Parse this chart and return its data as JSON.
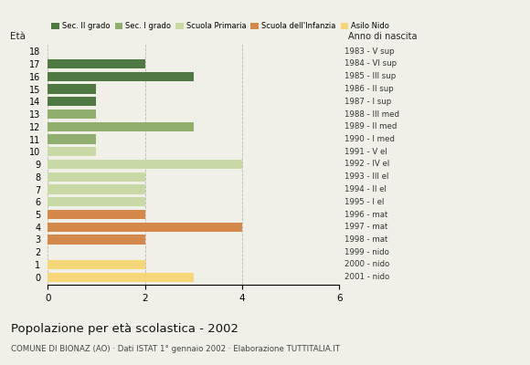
{
  "ages": [
    0,
    1,
    2,
    3,
    4,
    5,
    6,
    7,
    8,
    9,
    10,
    11,
    12,
    13,
    14,
    15,
    16,
    17,
    18
  ],
  "values": [
    3,
    2,
    0,
    2,
    4,
    2,
    2,
    2,
    2,
    4,
    1,
    1,
    3,
    1,
    1,
    1,
    3,
    2,
    0
  ],
  "colors": [
    "#f5d679",
    "#f5d679",
    "#f5d679",
    "#d4884a",
    "#d4884a",
    "#d4884a",
    "#c8d9a5",
    "#c8d9a5",
    "#c8d9a5",
    "#c8d9a5",
    "#c8d9a5",
    "#8faf6e",
    "#8faf6e",
    "#8faf6e",
    "#4f7942",
    "#4f7942",
    "#4f7942",
    "#4f7942",
    "#4f7942"
  ],
  "right_labels": [
    "2001 - nido",
    "2000 - nido",
    "1999 - nido",
    "1998 - mat",
    "1997 - mat",
    "1996 - mat",
    "1995 - I el",
    "1994 - II el",
    "1993 - III el",
    "1992 - IV el",
    "1991 - V el",
    "1990 - I med",
    "1989 - II med",
    "1988 - III med",
    "1987 - I sup",
    "1986 - II sup",
    "1985 - III sup",
    "1984 - VI sup",
    "1983 - V sup"
  ],
  "xlim": [
    0,
    6
  ],
  "xticks": [
    0,
    2,
    4,
    6
  ],
  "legend_labels": [
    "Sec. II grado",
    "Sec. I grado",
    "Scuola Primaria",
    "Scuola dell'Infanzia",
    "Asilo Nido"
  ],
  "legend_colors": [
    "#4f7942",
    "#8faf6e",
    "#c8d9a5",
    "#d4884a",
    "#f5d679"
  ],
  "title": "Popolazione per età scolastica - 2002",
  "subtitle": "COMUNE DI BIONAZ (AO) · Dati ISTAT 1° gennaio 2002 · Elaborazione TUTTITALIA.IT",
  "ylabel": "Età",
  "xlabel_right": "Anno di nascita",
  "bar_height": 0.75,
  "background_color": "#f0f0e8",
  "grid_color": "#aaaaaa",
  "figsize": [
    5.8,
    4.0
  ],
  "dpi": 100
}
